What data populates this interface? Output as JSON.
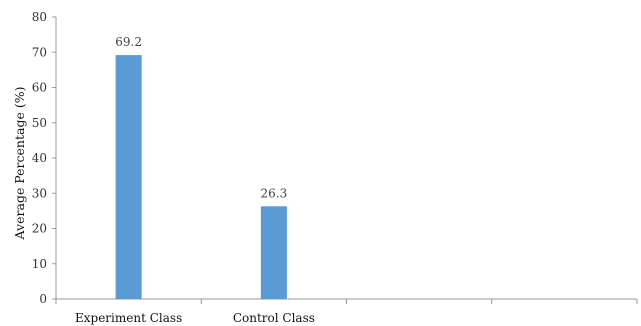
{
  "chart_data": {
    "type": "bar",
    "categories": [
      "Experiment Class",
      "Control Class",
      "",
      ""
    ],
    "values": [
      69.2,
      26.3,
      null,
      null
    ],
    "data_labels": [
      "69.2",
      "26.3",
      "",
      ""
    ],
    "ylabel": "Average Percentage (%)",
    "xlabel": "",
    "ylim": [
      0,
      80
    ],
    "yticks": [
      0,
      10,
      20,
      30,
      40,
      50,
      60,
      70,
      80
    ],
    "grid": false,
    "legend": "none",
    "bar_color": "#5b9bd5",
    "axis_color": "#999999"
  }
}
